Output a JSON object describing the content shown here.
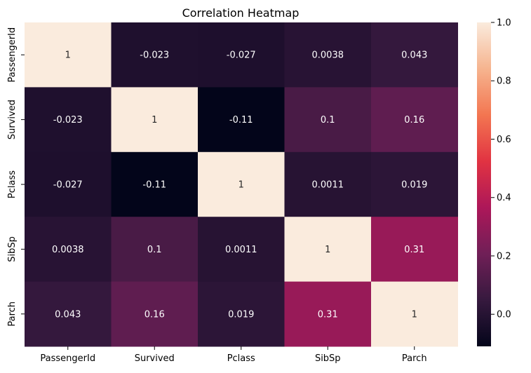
{
  "chart_data": {
    "type": "heatmap",
    "title": "Correlation Heatmap",
    "xlabel": "",
    "ylabel": "",
    "x_categories": [
      "PassengerId",
      "Survived",
      "Pclass",
      "SibSp",
      "Parch"
    ],
    "y_categories": [
      "PassengerId",
      "Survived",
      "Pclass",
      "SibSp",
      "Parch"
    ],
    "values": [
      [
        1,
        -0.023,
        -0.027,
        0.0038,
        0.043
      ],
      [
        -0.023,
        1,
        -0.11,
        0.1,
        0.16
      ],
      [
        -0.027,
        -0.11,
        1,
        0.0011,
        0.019
      ],
      [
        0.0038,
        0.1,
        0.0011,
        1,
        0.31
      ],
      [
        0.043,
        0.16,
        0.019,
        0.31,
        1
      ]
    ],
    "annotations": [
      [
        "1",
        "-0.023",
        "-0.027",
        "0.0038",
        "0.043"
      ],
      [
        "-0.023",
        "1",
        "-0.11",
        "0.1",
        "0.16"
      ],
      [
        "-0.027",
        "-0.11",
        "1",
        "0.0011",
        "0.019"
      ],
      [
        "0.0038",
        "0.1",
        "0.0011",
        "1",
        "0.31"
      ],
      [
        "0.043",
        "0.16",
        "0.019",
        "0.31",
        "1"
      ]
    ],
    "colorbar": {
      "range": [
        -0.11,
        1
      ],
      "ticks": [
        0.0,
        0.2,
        0.4,
        0.6,
        0.8,
        1.0
      ],
      "tick_labels": [
        "0.0",
        "0.2",
        "0.4",
        "0.6",
        "0.8",
        "1.0"
      ]
    },
    "colormap": [
      "#03051a",
      "#36193e",
      "#701f57",
      "#ad1759",
      "#e13342",
      "#f37651",
      "#f6b48f",
      "#faebdd"
    ],
    "grid": false
  }
}
